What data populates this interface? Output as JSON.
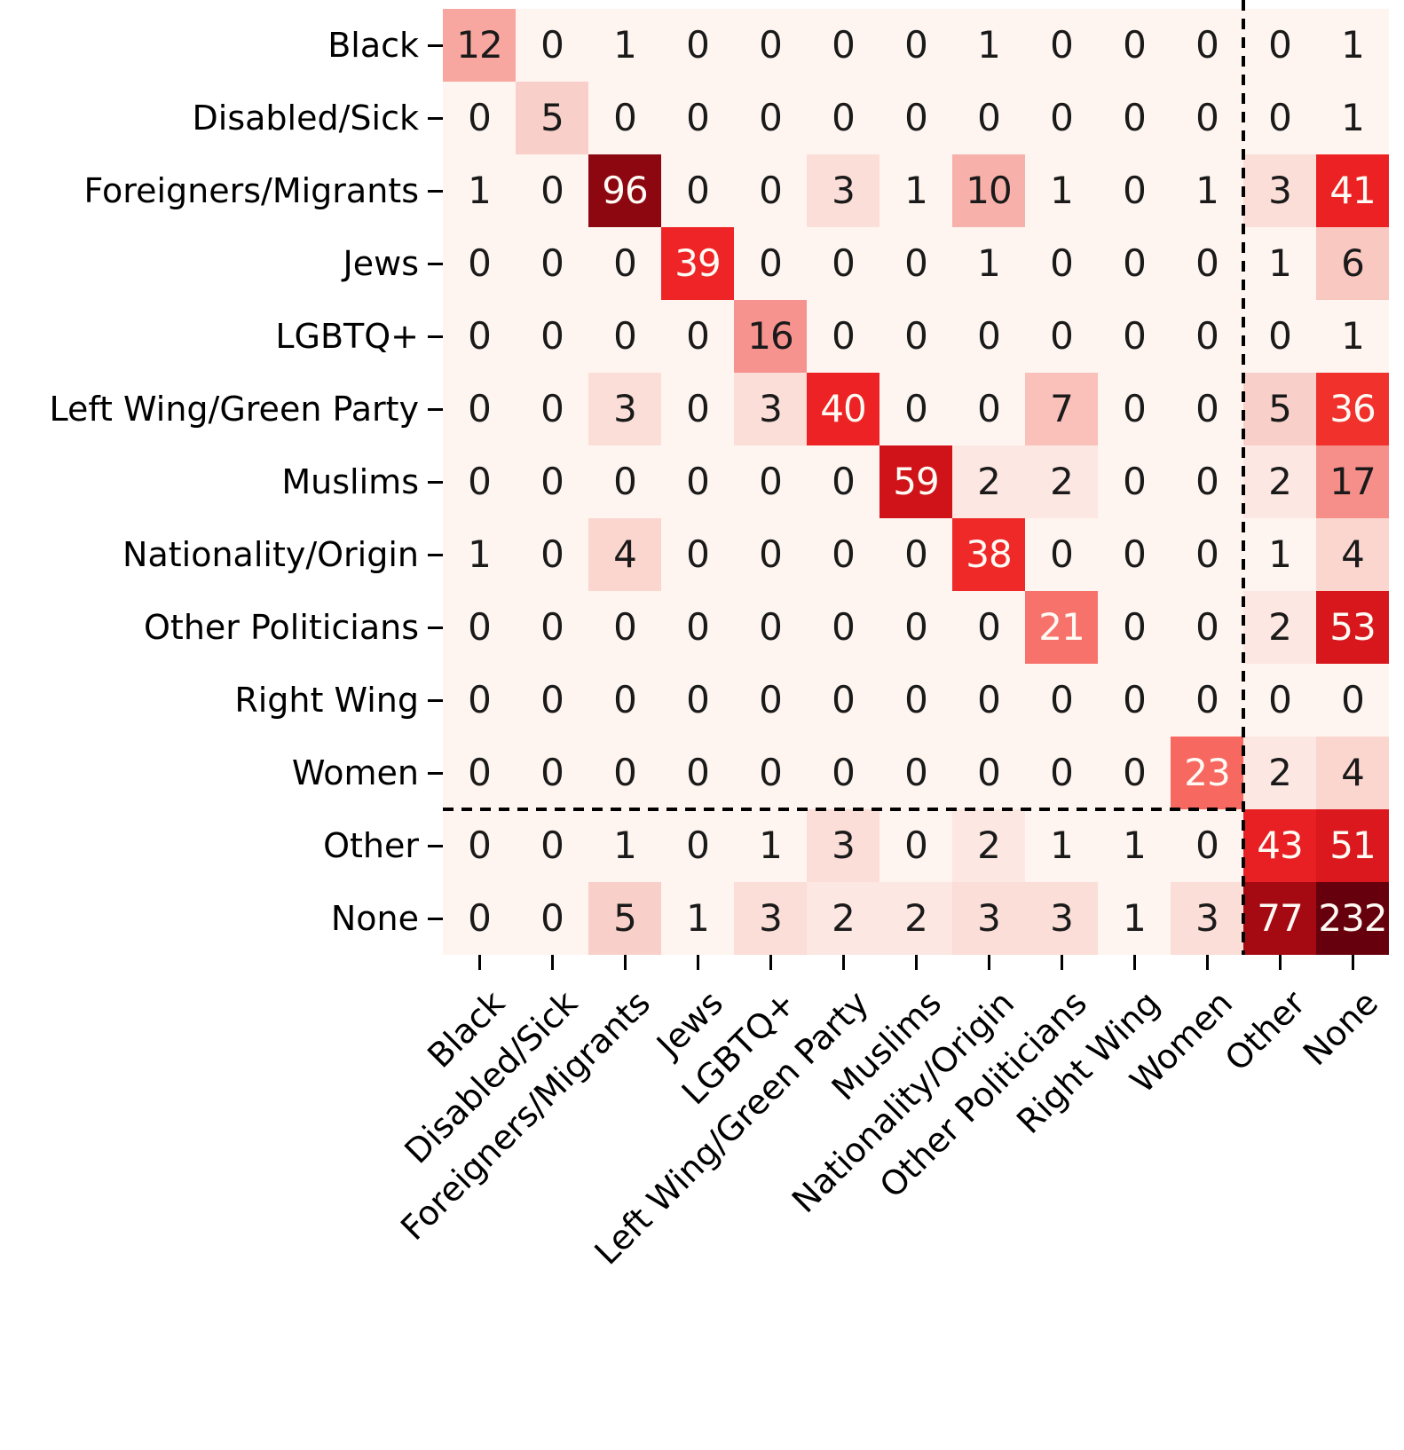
{
  "chart_data": {
    "type": "heatmap",
    "title": "",
    "xlabel": "",
    "ylabel": "",
    "x_labels": [
      "Black",
      "Disabled/Sick",
      "Foreigners/Migrants",
      "Jews",
      "LGBTQ+",
      "Left Wing/Green Party",
      "Muslims",
      "Nationality/Origin",
      "Other Politicians",
      "Right Wing",
      "Women",
      "Other",
      "None"
    ],
    "y_labels": [
      "Black",
      "Disabled/Sick",
      "Foreigners/Migrants",
      "Jews",
      "LGBTQ+",
      "Left Wing/Green Party",
      "Muslims",
      "Nationality/Origin",
      "Other Politicians",
      "Right Wing",
      "Women",
      "Other",
      "None"
    ],
    "matrix": [
      [
        12,
        0,
        1,
        0,
        0,
        0,
        0,
        1,
        0,
        0,
        0,
        0,
        1
      ],
      [
        0,
        5,
        0,
        0,
        0,
        0,
        0,
        0,
        0,
        0,
        0,
        0,
        1
      ],
      [
        1,
        0,
        96,
        0,
        0,
        3,
        1,
        10,
        1,
        0,
        1,
        3,
        41
      ],
      [
        0,
        0,
        0,
        39,
        0,
        0,
        0,
        1,
        0,
        0,
        0,
        1,
        6
      ],
      [
        0,
        0,
        0,
        0,
        16,
        0,
        0,
        0,
        0,
        0,
        0,
        0,
        1
      ],
      [
        0,
        0,
        3,
        0,
        3,
        40,
        0,
        0,
        7,
        0,
        0,
        5,
        36
      ],
      [
        0,
        0,
        0,
        0,
        0,
        0,
        59,
        2,
        2,
        0,
        0,
        2,
        17
      ],
      [
        1,
        0,
        4,
        0,
        0,
        0,
        0,
        38,
        0,
        0,
        0,
        1,
        4
      ],
      [
        0,
        0,
        0,
        0,
        0,
        0,
        0,
        0,
        21,
        0,
        0,
        2,
        53
      ],
      [
        0,
        0,
        0,
        0,
        0,
        0,
        0,
        0,
        0,
        0,
        0,
        0,
        0
      ],
      [
        0,
        0,
        0,
        0,
        0,
        0,
        0,
        0,
        0,
        0,
        23,
        2,
        4
      ],
      [
        0,
        0,
        1,
        0,
        1,
        3,
        0,
        2,
        1,
        1,
        0,
        43,
        51
      ],
      [
        0,
        0,
        5,
        1,
        3,
        2,
        2,
        3,
        3,
        1,
        3,
        77,
        232
      ]
    ],
    "annotations_shown": true,
    "colormap": "Reds",
    "norm": "log",
    "vmin": 1,
    "vmax": 232,
    "separator": {
      "after_row_index": 10,
      "after_col_index": 10,
      "style": "dashed",
      "color": "#000000"
    },
    "colors": {
      "cmap_low": "#fff5f0",
      "cmap_high": "#67000d",
      "background": "#ffffff",
      "tick_color": "#000000",
      "annotation_dark_text": "#1a1a1a",
      "annotation_light_text": "#fffaf4"
    },
    "legend": "none",
    "grid": false
  }
}
